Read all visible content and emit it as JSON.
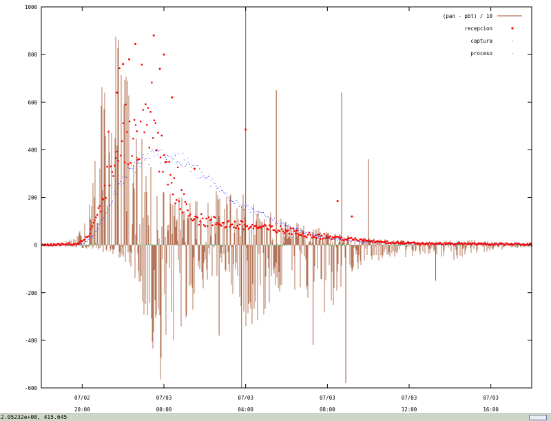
{
  "chart_data": {
    "type": "line",
    "title": "",
    "xlabel": "",
    "ylabel": "",
    "ylim": [
      -600,
      1000
    ],
    "yticks": [
      -600,
      -400,
      -200,
      0,
      200,
      400,
      600,
      800,
      1000
    ],
    "x_unit": "hours",
    "xlim": [
      17,
      41
    ],
    "xticks": [
      {
        "pos": 19,
        "date": "07/02",
        "time": "20:00"
      },
      {
        "pos": 23,
        "date": "07/03",
        "time": "00:00"
      },
      {
        "pos": 27,
        "date": "07/03",
        "time": "04:00"
      },
      {
        "pos": 31,
        "date": "07/03",
        "time": "08:00"
      },
      {
        "pos": 35,
        "date": "07/03",
        "time": "12:00"
      },
      {
        "pos": 39,
        "date": "07/03",
        "time": "16:00"
      }
    ],
    "grid": false,
    "legend_position": "top-right",
    "series": [
      {
        "name": "(pan - pbt) / 10",
        "style": "impulses",
        "color": "#a0522d",
        "envelope": {
          "x": [
            17,
            18,
            18.8,
            19.5,
            20,
            20.5,
            21,
            21.5,
            22,
            22.5,
            23,
            23.5,
            24,
            25,
            26,
            27,
            28,
            29,
            30,
            31,
            32,
            33,
            34,
            35,
            36,
            37,
            38,
            39,
            40,
            41
          ],
          "max": [
            5,
            10,
            40,
            280,
            700,
            950,
            850,
            600,
            420,
            300,
            250,
            220,
            200,
            220,
            240,
            210,
            150,
            110,
            90,
            70,
            45,
            30,
            25,
            20,
            15,
            20,
            25,
            15,
            10,
            10
          ],
          "min": [
            -5,
            -10,
            -10,
            -20,
            -30,
            -40,
            -60,
            -120,
            -300,
            -520,
            -600,
            -560,
            -350,
            -180,
            -120,
            -350,
            -330,
            -170,
            -240,
            -320,
            -120,
            -90,
            -60,
            -50,
            -40,
            -70,
            -40,
            -25,
            -15,
            -10
          ]
        },
        "spikes": [
          {
            "x": 27.0,
            "y": 1000
          },
          {
            "x": 28.5,
            "y": 650
          },
          {
            "x": 31.7,
            "y": 640
          },
          {
            "x": 33.0,
            "y": 360
          },
          {
            "x": 30.3,
            "y": -420
          },
          {
            "x": 31.9,
            "y": -580
          },
          {
            "x": 25.7,
            "y": -380
          },
          {
            "x": 26.8,
            "y": -600
          },
          {
            "x": 36.3,
            "y": -150
          }
        ]
      },
      {
        "name": "recepcion",
        "style": "points",
        "color": "#ff0000",
        "x": [
          17,
          18,
          18.8,
          19.3,
          19.6,
          20,
          20.4,
          20.8,
          21.2,
          21.5,
          21.8,
          22.2,
          22.6,
          23,
          23.4,
          24,
          24.5,
          25,
          26,
          27,
          28,
          29,
          30,
          31,
          32,
          33,
          34,
          35,
          36,
          37,
          38,
          39,
          40,
          41
        ],
        "y": [
          0,
          2,
          5,
          35,
          90,
          200,
          320,
          400,
          440,
          460,
          480,
          470,
          430,
          350,
          260,
          170,
          120,
          100,
          90,
          80,
          70,
          60,
          45,
          35,
          25,
          18,
          12,
          8,
          6,
          5,
          5,
          4,
          4,
          3
        ],
        "scatter_high": [
          {
            "x": 21.3,
            "y": 780
          },
          {
            "x": 21.6,
            "y": 845
          },
          {
            "x": 22.5,
            "y": 880
          },
          {
            "x": 22.8,
            "y": 740
          },
          {
            "x": 23.0,
            "y": 800
          },
          {
            "x": 21.0,
            "y": 760
          },
          {
            "x": 20.7,
            "y": 640
          },
          {
            "x": 27.0,
            "y": 485
          },
          {
            "x": 31.5,
            "y": 185
          },
          {
            "x": 32.2,
            "y": 120
          },
          {
            "x": 24.5,
            "y": 320
          },
          {
            "x": 23.4,
            "y": 620
          }
        ]
      },
      {
        "name": "captura",
        "style": "dots",
        "color": "#2222ff",
        "x": [
          17,
          18,
          19,
          19.5,
          20,
          20.5,
          21,
          21.5,
          22,
          22.5,
          23,
          23.5,
          24,
          24.5,
          25,
          25.5,
          26,
          27,
          28,
          29,
          30,
          31,
          32,
          33,
          34,
          35,
          36,
          37,
          38,
          39,
          40,
          41
        ],
        "y": [
          0,
          1,
          5,
          40,
          110,
          200,
          280,
          330,
          360,
          375,
          380,
          370,
          350,
          320,
          285,
          250,
          215,
          160,
          120,
          80,
          50,
          30,
          20,
          14,
          10,
          8,
          6,
          6,
          5,
          5,
          5,
          4
        ]
      },
      {
        "name": "proceso",
        "style": "dots",
        "color": "#3cb371",
        "x": [
          17,
          18,
          19,
          20,
          21,
          22,
          23,
          24,
          25,
          26,
          27,
          28,
          29,
          30,
          31,
          32,
          33,
          34,
          35,
          36,
          37,
          38,
          39,
          40,
          41
        ],
        "y": [
          0,
          0,
          1,
          2,
          3,
          3,
          3,
          2,
          2,
          2,
          2,
          2,
          1,
          1,
          1,
          1,
          1,
          1,
          1,
          1,
          1,
          1,
          1,
          1,
          1
        ]
      }
    ]
  },
  "statusbar": {
    "coords": "2.05232e+08,  415.645"
  }
}
